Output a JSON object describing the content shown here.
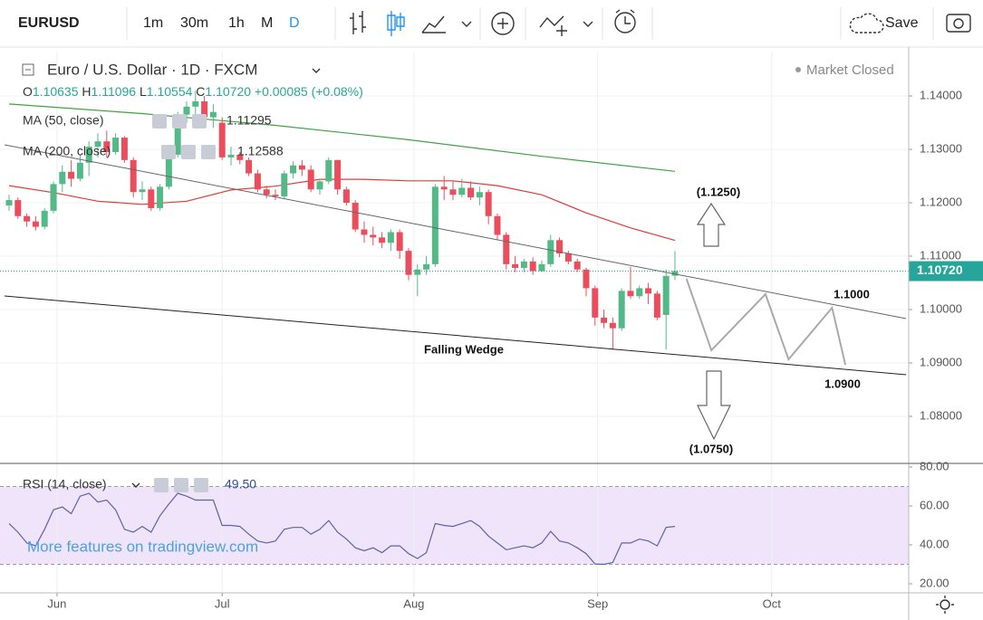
{
  "toolbar": {
    "symbol": "EURUSD",
    "intervals": [
      "1m",
      "30m",
      "1h",
      "M",
      "D"
    ],
    "save": "Save"
  },
  "status": "Market Closed",
  "watermark": "More features on tradingview.com",
  "chart_data": [
    {
      "type": "candlestick",
      "title": "Euro / U.S. Dollar · 1D · FXCM",
      "legend": {
        "ohlc": [
          {
            "key": "O",
            "value": "1.10635"
          },
          {
            "key": "H",
            "value": "1.11096"
          },
          {
            "key": "L",
            "value": "1.10554"
          },
          {
            "key": "C",
            "value": "1.10720"
          }
        ],
        "change": "+0.00085 (+0.08%)"
      },
      "up_color": "#53b987",
      "down_color": "#eb4d5c",
      "open": [
        1.1195,
        1.1205,
        1.1175,
        1.1165,
        1.1155,
        1.1185,
        1.1235,
        1.1258,
        1.1245,
        1.1275,
        1.1305,
        1.1315,
        1.1295,
        1.1322,
        1.128,
        1.122,
        1.1225,
        1.119,
        1.123,
        1.129,
        1.1365,
        1.138,
        1.139,
        1.136,
        1.135,
        1.1285,
        1.129,
        1.128,
        1.1255,
        1.1225,
        1.1215,
        1.1212,
        1.1255,
        1.127,
        1.1262,
        1.1225,
        1.124,
        1.128,
        1.1225,
        1.12,
        1.115,
        1.114,
        1.1135,
        1.1125,
        1.1145,
        1.111,
        1.1065,
        1.1075,
        1.1085,
        1.123,
        1.1225,
        1.1215,
        1.1228,
        1.121,
        1.122,
        1.1175,
        1.114,
        1.1085,
        1.1078,
        1.109,
        1.1072,
        1.1085,
        1.113,
        1.1105,
        1.109,
        1.1075,
        1.104,
        1.0985,
        1.0975,
        1.0965,
        1.1035,
        1.1025,
        1.104,
        1.103,
        1.099,
        1.10635
      ],
      "high": [
        1.1215,
        1.121,
        1.118,
        1.1175,
        1.119,
        1.124,
        1.127,
        1.128,
        1.129,
        1.1315,
        1.133,
        1.1335,
        1.133,
        1.1325,
        1.1285,
        1.124,
        1.123,
        1.1235,
        1.1295,
        1.137,
        1.139,
        1.141,
        1.14,
        1.1385,
        1.136,
        1.1305,
        1.1295,
        1.1285,
        1.1262,
        1.1232,
        1.1225,
        1.126,
        1.1278,
        1.128,
        1.127,
        1.1245,
        1.1285,
        1.128,
        1.123,
        1.1205,
        1.1165,
        1.1155,
        1.1145,
        1.115,
        1.115,
        1.1115,
        1.1085,
        1.11,
        1.1235,
        1.125,
        1.124,
        1.1245,
        1.124,
        1.123,
        1.1225,
        1.118,
        1.1145,
        1.11,
        1.1095,
        1.1098,
        1.1092,
        1.114,
        1.1135,
        1.111,
        1.1095,
        1.1078,
        1.1045,
        1.1,
        1.0985,
        1.104,
        1.108,
        1.1045,
        1.105,
        1.1035,
        1.1075,
        1.11096
      ],
      "low": [
        1.1185,
        1.117,
        1.1155,
        1.1148,
        1.115,
        1.118,
        1.122,
        1.123,
        1.124,
        1.125,
        1.1285,
        1.1285,
        1.129,
        1.1275,
        1.121,
        1.1205,
        1.1185,
        1.1185,
        1.1225,
        1.1285,
        1.135,
        1.1355,
        1.1345,
        1.134,
        1.128,
        1.127,
        1.1272,
        1.125,
        1.122,
        1.1208,
        1.1205,
        1.1208,
        1.1245,
        1.125,
        1.122,
        1.1215,
        1.1235,
        1.1215,
        1.1195,
        1.1145,
        1.1125,
        1.112,
        1.1115,
        1.111,
        1.1095,
        1.1055,
        1.1025,
        1.1065,
        1.108,
        1.1205,
        1.1205,
        1.121,
        1.1205,
        1.1195,
        1.116,
        1.113,
        1.1075,
        1.107,
        1.107,
        1.1065,
        1.107,
        1.108,
        1.1098,
        1.1085,
        1.107,
        1.1025,
        1.097,
        1.0965,
        1.0925,
        1.096,
        1.102,
        1.102,
        1.101,
        1.098,
        1.0925,
        1.10554
      ],
      "close": [
        1.1205,
        1.1175,
        1.1165,
        1.1155,
        1.1185,
        1.1235,
        1.1258,
        1.1245,
        1.1275,
        1.1305,
        1.1315,
        1.1295,
        1.1322,
        1.128,
        1.122,
        1.1225,
        1.119,
        1.123,
        1.129,
        1.1365,
        1.138,
        1.139,
        1.136,
        1.137,
        1.1285,
        1.129,
        1.128,
        1.1255,
        1.1225,
        1.1215,
        1.1212,
        1.1255,
        1.127,
        1.1262,
        1.1225,
        1.124,
        1.128,
        1.1225,
        1.12,
        1.115,
        1.114,
        1.1135,
        1.1125,
        1.1145,
        1.111,
        1.1065,
        1.1075,
        1.1085,
        1.123,
        1.1225,
        1.1215,
        1.1228,
        1.121,
        1.122,
        1.1175,
        1.114,
        1.1085,
        1.1078,
        1.109,
        1.1072,
        1.1085,
        1.113,
        1.1105,
        1.109,
        1.1075,
        1.104,
        1.0985,
        1.0975,
        1.0965,
        1.1035,
        1.1025,
        1.104,
        1.103,
        1.0985,
        1.1063,
        1.1072
      ],
      "xlim": [
        -1.02,
        101.33
      ],
      "xticks": [
        {
          "value": 5.4,
          "label": "Jun"
        },
        {
          "value": 24,
          "label": "Jul"
        },
        {
          "value": 45.6,
          "label": "Aug"
        },
        {
          "value": 66.3,
          "label": "Sep"
        },
        {
          "value": 85.9,
          "label": "Oct"
        }
      ],
      "ylim": [
        1.07119,
        1.14831
      ],
      "yticks": [
        {
          "value": 1.14,
          "label": "1.14000"
        },
        {
          "value": 1.13,
          "label": "1.13000"
        },
        {
          "value": 1.12,
          "label": "1.12000"
        },
        {
          "value": 1.11,
          "label": "1.11000"
        },
        {
          "value": 1.1,
          "label": "1.10000"
        },
        {
          "value": 1.09,
          "label": "1.09000"
        },
        {
          "value": 1.08,
          "label": "1.08000"
        }
      ],
      "grid": true,
      "last_price": {
        "value": 1.1072,
        "label": "1.10720"
      },
      "last_price_color": "#26a69a",
      "overlays": [
        {
          "name": "MA (50, close)",
          "color": "#e53935",
          "x": [
            0,
            5,
            10,
            15,
            20,
            25,
            30,
            35,
            40,
            45,
            50,
            55,
            60,
            65,
            70,
            75
          ],
          "values": [
            1.1232,
            1.1219,
            1.1203,
            1.1197,
            1.1203,
            1.1224,
            1.1231,
            1.1244,
            1.1244,
            1.1241,
            1.1241,
            1.1232,
            1.1215,
            1.1181,
            1.1153,
            1.11295
          ]
        },
        {
          "name": "MA (200, close)",
          "color": "#43a047",
          "x": [
            0,
            15,
            30,
            45,
            60,
            75
          ],
          "values": [
            1.1385,
            1.1367,
            1.1345,
            1.1318,
            1.1287,
            1.12588
          ]
        }
      ],
      "drawings": [
        {
          "color": "#666666",
          "x": [
            -0.51,
            101.04
          ],
          "values": [
            1.13085,
            1.09831
          ]
        },
        {
          "color": "#222222",
          "x": [
            -0.51,
            101.04
          ],
          "values": [
            1.10254,
            1.0878
          ]
        },
        {
          "color": "#aaaaaa",
          "x": [
            76.3,
            79.1,
            85.2,
            87.8,
            92.7,
            94.2
          ],
          "values": [
            1.10576,
            1.09237,
            1.10288,
            1.09068,
            1.10034,
            1.08966
          ]
        }
      ],
      "annotations": [
        "(1.1250)",
        "1.1000",
        "1.0900",
        "(1.0750)",
        "Falling Wedge"
      ]
    },
    {
      "type": "line",
      "name": "RSI (14, close)",
      "legend_value": "49.50",
      "color": "#5a63a8",
      "band_color": "#f0e4fb",
      "values": [
        51,
        46.5,
        41,
        39.5,
        48,
        58,
        59.5,
        56,
        65,
        66.5,
        62,
        63,
        58,
        48,
        46.5,
        49.5,
        46.5,
        55,
        61,
        66.5,
        65,
        63,
        63,
        63,
        50,
        50,
        49.5,
        45.5,
        42,
        41,
        42,
        48,
        49,
        49,
        45.5,
        48,
        52.5,
        46.5,
        43,
        38.5,
        37,
        38.5,
        36,
        39.5,
        39.5,
        35.5,
        33,
        36,
        51,
        50,
        49.5,
        51,
        52.5,
        49.5,
        44.5,
        41,
        37.5,
        38.5,
        39.5,
        38.5,
        41,
        47,
        42,
        41,
        38.5,
        35.5,
        30.2,
        30,
        31,
        41,
        41,
        43,
        42,
        39.5,
        49,
        49.5
      ],
      "xlim": [
        -1.02,
        101.33
      ],
      "ylim": [
        15.35,
        81.86
      ],
      "yticks": [
        {
          "value": 80,
          "label": "80.00"
        },
        {
          "value": 60,
          "label": "60.00"
        },
        {
          "value": 40,
          "label": "40.00"
        },
        {
          "value": 20,
          "label": "20.00"
        }
      ],
      "band": [
        30,
        70
      ]
    }
  ]
}
